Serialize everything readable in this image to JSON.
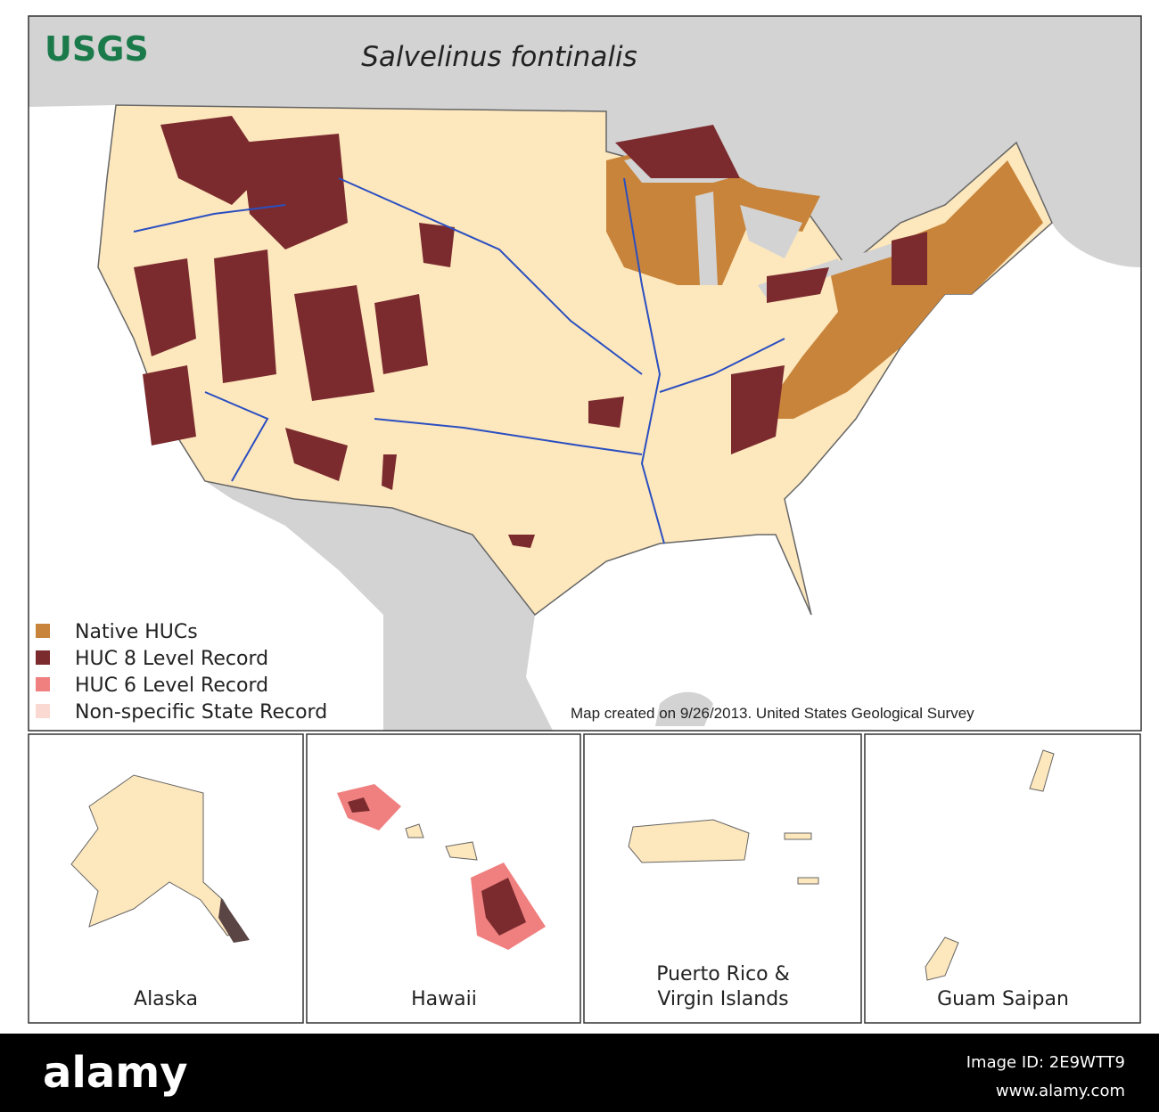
{
  "header": {
    "logo": "USGS",
    "title": "Salvelinus fontinalis"
  },
  "legend": {
    "items": [
      {
        "label": "Native HUCs",
        "color": "#c8843a"
      },
      {
        "label": "HUC 8 Level Record",
        "color": "#7b2b2e"
      },
      {
        "label": "HUC 6 Level Record",
        "color": "#f08080"
      },
      {
        "label": "Non-specific State Record",
        "color": "#fbd9d3"
      }
    ]
  },
  "credit": "Map created on 9/26/2013. United States Geological Survey",
  "insets": [
    {
      "label_lines": [
        "Alaska"
      ]
    },
    {
      "label_lines": [
        "Hawaii"
      ]
    },
    {
      "label_lines": [
        "Puerto Rico &",
        "Virgin Islands"
      ]
    },
    {
      "label_lines": [
        "Guam Saipan"
      ]
    }
  ],
  "footer": {
    "brand": "alamy",
    "image_id": "Image ID: 2E9WTT9",
    "url": "www.alamy.com"
  }
}
